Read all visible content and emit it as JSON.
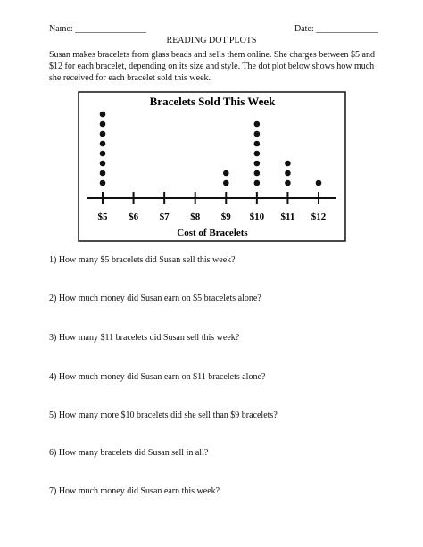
{
  "header": {
    "name_label": "Name: ________________",
    "date_label": "Date: ______________",
    "title": "READING DOT PLOTS"
  },
  "intro": "Susan makes bracelets from glass beads and sells them online. She charges between $5 and $12 for each bracelet, depending on its size and style. The dot plot below shows how much she received for each bracelet sold this week.",
  "chart_data": {
    "type": "dot",
    "title": "Bracelets Sold This Week",
    "xlabel": "Cost of Bracelets",
    "categories": [
      "$5",
      "$6",
      "$7",
      "$8",
      "$9",
      "$10",
      "$11",
      "$12"
    ],
    "values": [
      8,
      0,
      0,
      0,
      2,
      7,
      3,
      1
    ],
    "color": "#111111"
  },
  "questions": [
    "1) How many $5 bracelets did Susan sell this week?",
    "2) How much money did Susan earn on $5 bracelets alone?",
    "3) How many $11 bracelets did Susan sell this week?",
    "4) How much money did Susan earn on $11 bracelets alone?",
    "5) How many more $10 bracelets did she sell than $9 bracelets?",
    "6) How many bracelets did Susan sell in all?",
    "7) How much money did Susan earn this week?"
  ]
}
